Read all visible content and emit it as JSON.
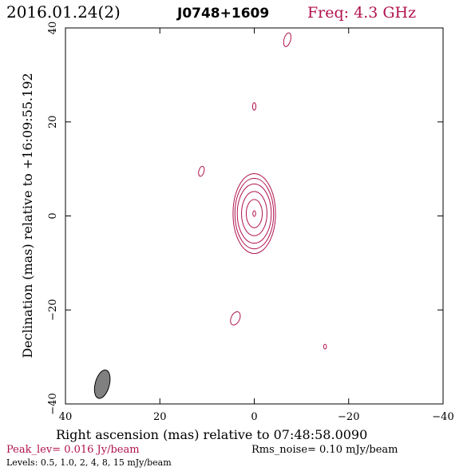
{
  "header": {
    "date": "2016.01.24(2)",
    "source": "J0748+1609",
    "freq": "Freq: 4.3 GHz"
  },
  "footer": {
    "peak": "Peak_lev=  0.016 Jy/beam",
    "rms": "Rms_noise= 0.10 mJy/beam",
    "levels": "Levels: 0.5, 1.0,   2,   4,   8,  15 mJy/beam"
  },
  "colors": {
    "contour": "#b0124e",
    "peak_text": "#b0124e",
    "freq_text": "#b0124e",
    "beam_fill": "#808080",
    "axis": "#000000"
  },
  "chart_data": {
    "type": "contour",
    "xlabel": "Right ascension (mas) relative to 07:48:58.0090",
    "ylabel": "Declination (mas) relative to +16:09:55.192",
    "xlim": [
      40,
      -40
    ],
    "ylim": [
      -40,
      40
    ],
    "xticks": [
      40,
      20,
      0,
      -20,
      -40
    ],
    "yticks": [
      -40,
      -20,
      0,
      20,
      40
    ],
    "xtick_labels": [
      "40",
      "20",
      "0",
      "−20",
      "−40"
    ],
    "ytick_labels": [
      "−40",
      "−20",
      "0",
      "20",
      "40"
    ],
    "contour_levels_mJy": [
      0.5,
      1.0,
      2,
      4,
      8,
      15
    ],
    "core": {
      "x": 0.0,
      "y": 0.5,
      "rings": [
        {
          "dx": 4.5,
          "dy": 8.5
        },
        {
          "dx": 4.1,
          "dy": 7.5
        },
        {
          "dx": 3.6,
          "dy": 6.3
        },
        {
          "dx": 2.7,
          "dy": 4.7
        },
        {
          "dx": 1.7,
          "dy": 3.0
        },
        {
          "dx": 0.3,
          "dy": 0.6
        }
      ]
    },
    "isolated_components": [
      {
        "x": -7.0,
        "y": 37.5,
        "dx": 0.7,
        "dy": 1.5,
        "angle": 15
      },
      {
        "x": 0.0,
        "y": 23.3,
        "dx": 0.35,
        "dy": 0.8,
        "angle": 0
      },
      {
        "x": 11.2,
        "y": 9.5,
        "dx": 0.55,
        "dy": 1.1,
        "angle": 15
      },
      {
        "x": 4.0,
        "y": -21.8,
        "dx": 0.9,
        "dy": 1.5,
        "angle": 25
      },
      {
        "x": -15.0,
        "y": -27.8,
        "dx": 0.3,
        "dy": 0.5,
        "angle": 0
      }
    ],
    "beam": {
      "x": 32.2,
      "y": -35.8,
      "major": 6.2,
      "minor": 3.0,
      "pa": 15
    }
  }
}
